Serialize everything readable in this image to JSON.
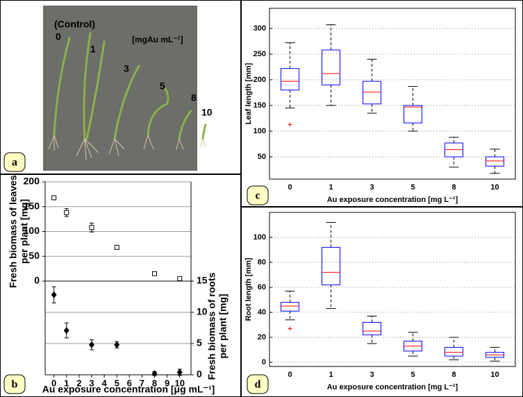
{
  "photo": {
    "labels": [
      "(Control)",
      "0",
      "1",
      "3",
      "5",
      "8",
      "10"
    ],
    "unit": "[mgAu mL⁻¹]"
  },
  "panel_labels": [
    "a",
    "b",
    "c",
    "d"
  ],
  "chart_data": [
    {
      "type": "scatter",
      "x": [
        0,
        1,
        3,
        5,
        8,
        10
      ],
      "xlim": [
        -0.7,
        10.9
      ],
      "xticks": [
        0,
        1,
        2,
        3,
        4,
        5,
        6,
        7,
        8,
        9,
        10
      ],
      "xlabel": "Au exposure concentration [μg mL⁻¹]",
      "ylabel": [
        "Fresh biomass of leaves",
        "per plant [mg]"
      ],
      "ylim": [
        0,
        200
      ],
      "yticks": [
        0,
        50,
        100,
        150,
        200
      ],
      "y2label": [
        "Fresh biomass of roots",
        "per plant [mg]"
      ],
      "y2lim": [
        0,
        15
      ],
      "y2ticks": [
        0,
        5,
        10,
        15
      ],
      "grid": true,
      "series": [
        {
          "marker": "open-square",
          "color": "#000000",
          "values": [
            168,
            138,
            108,
            68,
            15,
            5
          ],
          "errors": [
            4,
            8,
            9,
            3,
            3,
            2
          ]
        },
        {
          "axis": "y2",
          "marker": "filled-diamond",
          "color": "#000000",
          "values": [
            12.8,
            7.1,
            4.8,
            4.8,
            0.2,
            0.4
          ],
          "errors": [
            1.3,
            1.2,
            0.8,
            0.5,
            0.3,
            0.5
          ]
        }
      ]
    },
    {
      "type": "box",
      "categories": [
        "0",
        "1",
        "3",
        "5",
        "8",
        "10"
      ],
      "ylim": [
        6.8,
        339
      ],
      "yticks": [
        50,
        100,
        150,
        200,
        250,
        300
      ],
      "xlabel": "Au exposure concentration [mg L⁻¹]",
      "ylabel": "Leaf length [mm]",
      "grid": true,
      "box_color": "#0000ff",
      "median_color": "#ff0000",
      "whisker_color": "#000000",
      "outlier_color": "#ff0000",
      "boxes": [
        {
          "whisker_low": 145,
          "q1": 180,
          "median": 197,
          "q3": 222,
          "whisker_high": 272,
          "outliers": [
            113
          ]
        },
        {
          "whisker_low": 150,
          "q1": 190,
          "median": 212,
          "q3": 258,
          "whisker_high": 307,
          "outliers": []
        },
        {
          "whisker_low": 135,
          "q1": 153,
          "median": 176,
          "q3": 197,
          "whisker_high": 240,
          "outliers": []
        },
        {
          "whisker_low": 100,
          "q1": 116,
          "median": 147,
          "q3": 150,
          "whisker_high": 187,
          "outliers": []
        },
        {
          "whisker_low": 30,
          "q1": 50,
          "median": 64,
          "q3": 77,
          "whisker_high": 88,
          "outliers": []
        },
        {
          "whisker_low": 18,
          "q1": 32,
          "median": 42,
          "q3": 50,
          "whisker_high": 65,
          "outliers": []
        }
      ]
    },
    {
      "type": "box",
      "categories": [
        "0",
        "1",
        "3",
        "5",
        "8",
        "10"
      ],
      "ylim": [
        -3.3,
        120
      ],
      "yticks": [
        0,
        20,
        40,
        60,
        80,
        100
      ],
      "xlabel": "Au exposure concentration [mg L⁻¹]",
      "ylabel": "Root length [mm]",
      "grid": true,
      "box_color": "#0000ff",
      "median_color": "#ff0000",
      "whisker_color": "#000000",
      "outlier_color": "#ff0000",
      "boxes": [
        {
          "whisker_low": 34,
          "q1": 41,
          "median": 45,
          "q3": 48,
          "whisker_high": 57,
          "outliers": [
            27
          ]
        },
        {
          "whisker_low": 43,
          "q1": 62,
          "median": 72,
          "q3": 92,
          "whisker_high": 112,
          "outliers": []
        },
        {
          "whisker_low": 15,
          "q1": 22,
          "median": 25,
          "q3": 32,
          "whisker_high": 37,
          "outliers": []
        },
        {
          "whisker_low": 5,
          "q1": 9,
          "median": 13,
          "q3": 17,
          "whisker_high": 24,
          "outliers": []
        },
        {
          "whisker_low": 2,
          "q1": 5,
          "median": 8,
          "q3": 12,
          "whisker_high": 20,
          "outliers": []
        },
        {
          "whisker_low": 1,
          "q1": 4,
          "median": 6,
          "q3": 8,
          "whisker_high": 12,
          "outliers": []
        }
      ]
    }
  ]
}
